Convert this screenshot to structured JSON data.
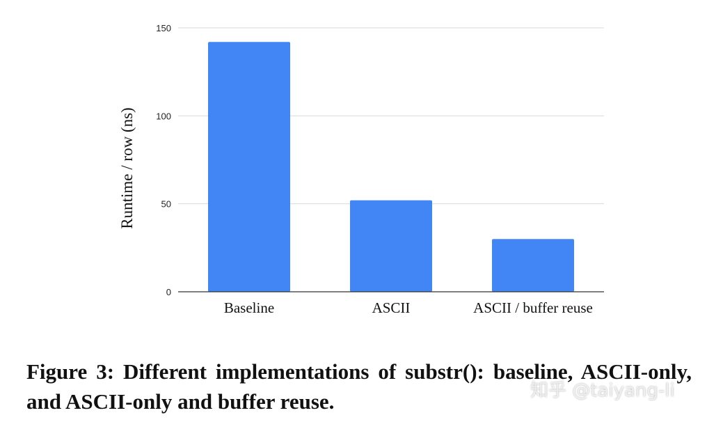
{
  "chart_data": {
    "type": "bar",
    "categories": [
      "Baseline",
      "ASCII",
      "ASCII / buffer reuse"
    ],
    "values": [
      142,
      52,
      30
    ],
    "xlabel": "",
    "ylabel": "Runtime / row (ns)",
    "ylim": [
      0,
      150
    ],
    "yticks": [
      0,
      50,
      100,
      150
    ],
    "grid": true,
    "legend": "none",
    "bar_color": "#4285f4",
    "gridline_color": "#d9d9d9"
  },
  "caption": {
    "text": "Figure 3: Different implementations of substr(): baseline, ASCII-only, and ASCII-only and buffer reuse."
  },
  "watermark": {
    "text": "知乎 @taiyang-li"
  }
}
